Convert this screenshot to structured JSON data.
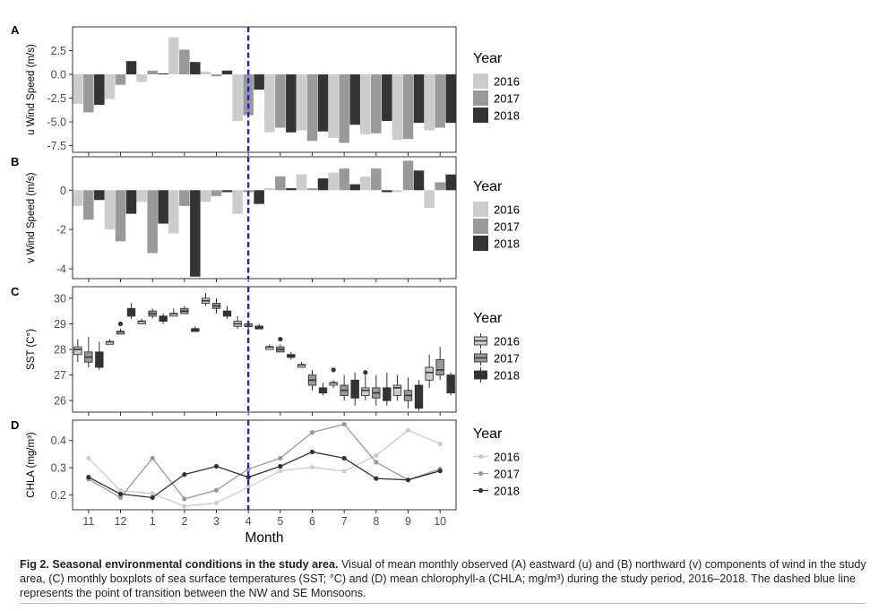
{
  "colors": {
    "y2016": "#cccccc",
    "y2017": "#999999",
    "y2018": "#333333",
    "dash": "#1f1fcc"
  },
  "figure": {
    "months": [
      "11",
      "12",
      "1",
      "2",
      "3",
      "4",
      "5",
      "6",
      "7",
      "8",
      "9",
      "10"
    ],
    "x_axis_title": "Month",
    "legend_title": "Year",
    "years": [
      "2016",
      "2017",
      "2018"
    ],
    "transition_after_index": 5
  },
  "chart_data": [
    {
      "panel": "A",
      "type": "bar",
      "ylabel": "u Wind Speed (m/s)",
      "ylim": [
        -8.2,
        5.0
      ],
      "ticks": [
        2.5,
        0.0,
        -2.5,
        -5.0,
        -7.5
      ],
      "tick_labels": [
        "2.5",
        "0.0",
        "-2.5",
        "-5.0",
        "-7.5"
      ],
      "categories": [
        "11",
        "12",
        "1",
        "2",
        "3",
        "4",
        "5",
        "6",
        "7",
        "8",
        "9",
        "10"
      ],
      "series": [
        {
          "name": "2016",
          "values": [
            -3.1,
            -2.6,
            -0.8,
            3.9,
            0.3,
            -4.9,
            -6.1,
            -5.9,
            -6.7,
            -6.3,
            -6.9,
            -5.9
          ]
        },
        {
          "name": "2017",
          "values": [
            -4.0,
            -1.1,
            0.4,
            2.6,
            -0.2,
            -4.3,
            -5.6,
            -7.0,
            -7.2,
            -6.2,
            -6.8,
            -5.6
          ]
        },
        {
          "name": "2018",
          "values": [
            -3.2,
            1.4,
            0.1,
            1.3,
            0.4,
            -1.6,
            -6.1,
            -6.0,
            -5.3,
            -4.9,
            -5.1,
            -5.1
          ]
        }
      ]
    },
    {
      "panel": "B",
      "type": "bar",
      "ylabel": "v Wind Speed (m/s)",
      "ylim": [
        -4.5,
        1.7
      ],
      "ticks": [
        0,
        -2,
        -4
      ],
      "tick_labels": [
        "0",
        "-2",
        "-4"
      ],
      "categories": [
        "11",
        "12",
        "1",
        "2",
        "3",
        "4",
        "5",
        "6",
        "7",
        "8",
        "9",
        "10"
      ],
      "series": [
        {
          "name": "2016",
          "values": [
            -0.8,
            -2.0,
            -0.6,
            -2.2,
            -0.6,
            -1.2,
            0.1,
            0.8,
            0.9,
            0.7,
            -0.1,
            -0.9
          ]
        },
        {
          "name": "2017",
          "values": [
            -1.5,
            -2.6,
            -3.2,
            -0.8,
            -0.3,
            -0.1,
            0.7,
            0.1,
            1.1,
            1.1,
            1.5,
            0.4
          ]
        },
        {
          "name": "2018",
          "values": [
            -0.5,
            -1.2,
            -1.7,
            -4.4,
            -0.1,
            -0.7,
            0.1,
            0.6,
            0.3,
            -0.1,
            1.0,
            0.8
          ]
        }
      ]
    },
    {
      "panel": "C",
      "type": "box",
      "ylabel": "SST (C°)",
      "ylim": [
        25.55,
        30.45
      ],
      "ticks": [
        30,
        29,
        28,
        27,
        26
      ],
      "tick_labels": [
        "30",
        "29",
        "28",
        "27",
        "26"
      ],
      "categories": [
        "11",
        "12",
        "1",
        "2",
        "3",
        "4",
        "5",
        "6",
        "7",
        "8",
        "9",
        "10"
      ],
      "series": [
        {
          "name": "2016",
          "boxes": [
            [
              27.5,
              27.8,
              28.0,
              28.1,
              28.4
            ],
            [
              28.2,
              28.2,
              28.3,
              28.3,
              28.4
            ],
            [
              29.0,
              29.0,
              29.1,
              29.1,
              29.2
            ],
            [
              29.3,
              29.3,
              29.4,
              29.4,
              29.6
            ],
            [
              29.7,
              29.8,
              29.9,
              30.0,
              30.2
            ],
            [
              28.8,
              28.9,
              29.0,
              29.1,
              29.3
            ],
            [
              28.0,
              28.0,
              28.1,
              28.1,
              28.2
            ],
            [
              27.3,
              27.3,
              27.4,
              27.4,
              27.5
            ],
            [
              26.5,
              26.6,
              26.7,
              26.7,
              26.8
            ],
            [
              26.0,
              26.2,
              26.4,
              26.5,
              27.0
            ],
            [
              26.0,
              26.2,
              26.5,
              26.6,
              27.0
            ],
            [
              26.5,
              26.8,
              27.1,
              27.3,
              27.8
            ]
          ]
        },
        {
          "name": "2017",
          "boxes": [
            [
              27.3,
              27.5,
              27.7,
              27.9,
              28.5
            ],
            [
              28.6,
              28.6,
              28.7,
              28.7,
              28.8
            ],
            [
              29.2,
              29.3,
              29.4,
              29.5,
              29.6
            ],
            [
              29.4,
              29.4,
              29.5,
              29.6,
              29.7
            ],
            [
              29.4,
              29.6,
              29.7,
              29.8,
              30.0
            ],
            [
              28.8,
              28.9,
              28.9,
              29.0,
              29.1
            ],
            [
              27.9,
              27.9,
              28.0,
              28.1,
              28.2
            ],
            [
              26.4,
              26.6,
              26.8,
              27.0,
              27.2
            ],
            [
              26.0,
              26.2,
              26.4,
              26.6,
              27.0
            ],
            [
              25.8,
              26.1,
              26.3,
              26.5,
              27.0
            ],
            [
              25.7,
              26.0,
              26.2,
              26.4,
              26.9
            ],
            [
              26.8,
              27.0,
              27.2,
              27.6,
              28.1
            ]
          ]
        },
        {
          "name": "2018",
          "boxes": [
            [
              27.2,
              27.3,
              27.5,
              27.9,
              28.3
            ],
            [
              29.2,
              29.3,
              29.4,
              29.6,
              29.8
            ],
            [
              29.0,
              29.1,
              29.2,
              29.3,
              29.4
            ],
            [
              28.7,
              28.7,
              28.8,
              28.8,
              28.9
            ],
            [
              29.2,
              29.3,
              29.4,
              29.5,
              29.7
            ],
            [
              28.8,
              28.8,
              28.9,
              28.9,
              29.0
            ],
            [
              27.6,
              27.7,
              27.7,
              27.8,
              27.9
            ],
            [
              26.2,
              26.3,
              26.4,
              26.5,
              26.7
            ],
            [
              25.8,
              26.1,
              26.3,
              26.8,
              27.1
            ],
            [
              25.8,
              26.0,
              26.3,
              26.5,
              27.1
            ],
            [
              25.6,
              25.7,
              26.1,
              26.6,
              26.8
            ],
            [
              26.2,
              26.3,
              26.6,
              27.0,
              27.1
            ]
          ]
        }
      ],
      "outliers": [
        {
          "month_index": 1,
          "year": "2017",
          "value": 29.0
        },
        {
          "month_index": 6,
          "year": "2017",
          "value": 28.4
        },
        {
          "month_index": 8,
          "year": "2016",
          "value": 27.2
        },
        {
          "month_index": 9,
          "year": "2016",
          "value": 27.1
        }
      ]
    },
    {
      "panel": "D",
      "type": "line",
      "ylabel": "CHLA (mg/m³)",
      "ylim": [
        0.145,
        0.475
      ],
      "ticks": [
        0.4,
        0.3,
        0.2
      ],
      "tick_labels": [
        "0.4",
        "0.3",
        "0.2"
      ],
      "categories": [
        "11",
        "12",
        "1",
        "2",
        "3",
        "4",
        "5",
        "6",
        "7",
        "8",
        "9",
        "10"
      ],
      "series": [
        {
          "name": "2016",
          "values": [
            0.335,
            0.215,
            0.205,
            0.158,
            0.17,
            0.228,
            0.288,
            0.302,
            0.287,
            0.345,
            0.438,
            0.388
          ]
        },
        {
          "name": "2017",
          "values": [
            0.258,
            0.19,
            0.335,
            0.185,
            0.217,
            0.295,
            0.335,
            0.43,
            0.46,
            0.32,
            0.255,
            0.295
          ]
        },
        {
          "name": "2018",
          "values": [
            0.265,
            0.203,
            0.19,
            0.275,
            0.305,
            0.265,
            0.305,
            0.358,
            0.335,
            0.26,
            0.255,
            0.288
          ]
        }
      ]
    }
  ],
  "caption": {
    "label": "Fig 2.",
    "title": "Seasonal environmental conditions in the study area.",
    "body": " Visual of mean monthly observed (A) eastward (u) and (B) northward (v) components of wind in the study area, (C) monthly boxplots of sea surface temperatures (SST; °C) and (D) mean chlorophyll-a (CHLA; mg/m³) during the study period, 2016–2018. The dashed blue line represents the point of transition between the NW and SE Monsoons."
  }
}
